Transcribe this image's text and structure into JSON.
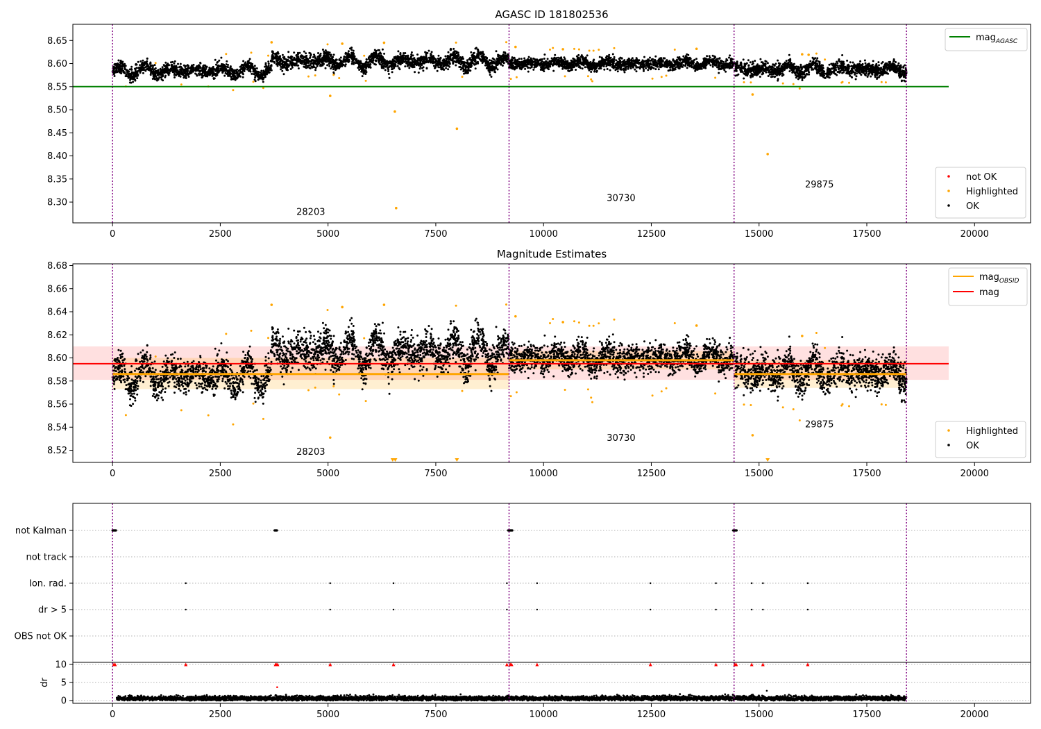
{
  "chart_data": [
    {
      "type": "scatter",
      "title": "AGASC ID 181802536",
      "xlim": [
        -920,
        21300
      ],
      "ylim": [
        8.255,
        8.685
      ],
      "xticks": [
        0,
        2500,
        5000,
        7500,
        10000,
        12500,
        15000,
        17500,
        20000
      ],
      "xtick_labels": [
        "0",
        "2500",
        "5000",
        "7500",
        "10000",
        "12500",
        "15000",
        "17500",
        "20000"
      ],
      "yticks": [
        8.3,
        8.35,
        8.4,
        8.45,
        8.5,
        8.55,
        8.6,
        8.65
      ],
      "ytick_labels": [
        "8.30",
        "8.35",
        "8.40",
        "8.45",
        "8.50",
        "8.55",
        "8.60",
        "8.65"
      ],
      "obs_boundaries": [
        0,
        9200,
        14420,
        18420
      ],
      "obs_labels": [
        {
          "text": "28203",
          "x": 4600,
          "y": 8.272
        },
        {
          "text": "30730",
          "x": 11800,
          "y": 8.302
        },
        {
          "text": "29875",
          "x": 16400,
          "y": 8.332
        }
      ],
      "lines": [
        {
          "name": "mag_AGASC",
          "color": "#008000",
          "y": 8.55,
          "x_from": -920,
          "x_to": 19400
        }
      ],
      "line_legend": {
        "placement": "top-right",
        "entries": [
          {
            "label": "mag",
            "sub": "AGASC",
            "color": "#008000"
          }
        ]
      },
      "point_legend": {
        "placement": "bottom-right",
        "entries": [
          {
            "label": "not OK",
            "color": "#ff0000"
          },
          {
            "label": "Highlighted",
            "color": "#ffa500"
          },
          {
            "label": "OK",
            "color": "#000000"
          }
        ]
      },
      "segments": [
        {
          "x": [
            0,
            3700
          ],
          "mean": 8.585,
          "amp": 0.012,
          "noise": 0.007
        },
        {
          "x": [
            3700,
            9200
          ],
          "mean": 8.605,
          "amp": 0.014,
          "noise": 0.008
        },
        {
          "x": [
            9200,
            14420
          ],
          "mean": 8.6,
          "amp": 0.006,
          "noise": 0.006
        },
        {
          "x": [
            14420,
            18420
          ],
          "mean": 8.588,
          "amp": 0.01,
          "noise": 0.007
        }
      ],
      "outliers": [
        {
          "x": 6550,
          "y": 8.496
        },
        {
          "x": 6580,
          "y": 8.287
        },
        {
          "x": 7990,
          "y": 8.459
        },
        {
          "x": 5050,
          "y": 8.53
        },
        {
          "x": 14850,
          "y": 8.533
        },
        {
          "x": 15200,
          "y": 8.404
        },
        {
          "x": 3690,
          "y": 8.646
        },
        {
          "x": 5330,
          "y": 8.643
        },
        {
          "x": 6300,
          "y": 8.645
        },
        {
          "x": 9350,
          "y": 8.636
        },
        {
          "x": 10450,
          "y": 8.631
        },
        {
          "x": 13550,
          "y": 8.632
        },
        {
          "x": 16000,
          "y": 8.62
        },
        {
          "x": 16150,
          "y": 8.619
        }
      ]
    },
    {
      "type": "scatter",
      "title": "Magnitude Estimates",
      "xlim": [
        -920,
        21300
      ],
      "ylim": [
        8.5095,
        8.6815
      ],
      "xticks": [
        0,
        2500,
        5000,
        7500,
        10000,
        12500,
        15000,
        17500,
        20000
      ],
      "xtick_labels": [
        "0",
        "2500",
        "5000",
        "7500",
        "10000",
        "12500",
        "15000",
        "17500",
        "20000"
      ],
      "yticks": [
        8.52,
        8.54,
        8.56,
        8.58,
        8.6,
        8.62,
        8.64,
        8.66,
        8.68
      ],
      "ytick_labels": [
        "8.52",
        "8.54",
        "8.56",
        "8.58",
        "8.60",
        "8.62",
        "8.64",
        "8.66",
        "8.68"
      ],
      "obs_boundaries": [
        0,
        9200,
        14420,
        18420
      ],
      "obs_labels": [
        {
          "text": "28203",
          "x": 4600,
          "y": 8.516
        },
        {
          "text": "30730",
          "x": 11800,
          "y": 8.528
        },
        {
          "text": "29875",
          "x": 16400,
          "y": 8.54
        }
      ],
      "mag": {
        "value": 8.595,
        "band": [
          8.581,
          8.61
        ],
        "x_from": -920,
        "x_to": 19400,
        "color": "#ff0000"
      },
      "mag_obsid": [
        {
          "x": [
            0,
            9200
          ],
          "value": 8.586,
          "band": [
            8.573,
            8.6
          ]
        },
        {
          "x": [
            9200,
            14420
          ],
          "value": 8.598,
          "band": [
            8.59,
            8.606
          ]
        },
        {
          "x": [
            14420,
            18420
          ],
          "value": 8.586,
          "band": [
            8.574,
            8.598
          ]
        }
      ],
      "line_legend": {
        "placement": "top-right",
        "entries": [
          {
            "label": "mag",
            "sub": "OBSID",
            "color": "#ffa500"
          },
          {
            "label": "mag",
            "sub": "",
            "color": "#ff0000"
          }
        ]
      },
      "point_legend": {
        "placement": "bottom-right",
        "entries": [
          {
            "label": "Highlighted",
            "color": "#ffa500"
          },
          {
            "label": "OK",
            "color": "#000000"
          }
        ]
      },
      "segments": [
        {
          "x": [
            0,
            3700
          ],
          "mean": 8.585,
          "amp": 0.012,
          "noise": 0.007
        },
        {
          "x": [
            3700,
            9200
          ],
          "mean": 8.605,
          "amp": 0.014,
          "noise": 0.008
        },
        {
          "x": [
            9200,
            14420
          ],
          "mean": 8.6,
          "amp": 0.006,
          "noise": 0.006
        },
        {
          "x": [
            14420,
            18420
          ],
          "mean": 8.588,
          "amp": 0.01,
          "noise": 0.007
        }
      ],
      "clipped_low_markers": [
        6500,
        6560,
        7990,
        15200
      ],
      "outliers": [
        {
          "x": 5050,
          "y": 8.531
        },
        {
          "x": 14850,
          "y": 8.533
        },
        {
          "x": 3690,
          "y": 8.646
        },
        {
          "x": 5330,
          "y": 8.644
        },
        {
          "x": 6300,
          "y": 8.646
        },
        {
          "x": 9350,
          "y": 8.636
        },
        {
          "x": 10450,
          "y": 8.631
        },
        {
          "x": 13550,
          "y": 8.628
        },
        {
          "x": 16000,
          "y": 8.619
        }
      ]
    },
    {
      "type": "scatter",
      "title": "",
      "xlim": [
        -920,
        21300
      ],
      "xticks": [
        0,
        2500,
        5000,
        7500,
        10000,
        12500,
        15000,
        17500,
        20000
      ],
      "xtick_labels": [
        "0",
        "2500",
        "5000",
        "7500",
        "10000",
        "12500",
        "15000",
        "17500",
        "20000"
      ],
      "obs_boundaries": [
        0,
        9200,
        14420,
        18420
      ],
      "flag_rows": [
        "not Kalman",
        "not track",
        "Ion. rad.",
        "dr > 5",
        "OBS not OK"
      ],
      "flags": {
        "not Kalman": [
          [
            0,
            80
          ],
          [
            3760,
            3820
          ],
          [
            9180,
            9280
          ],
          [
            14400,
            14480
          ]
        ],
        "not track": [],
        "Ion. rad.": [
          1700,
          5050,
          6520,
          9150,
          9850,
          12480,
          14000,
          14830,
          15090,
          16130
        ],
        "dr > 5": [
          1700,
          5050,
          6520,
          9150,
          9850,
          12480,
          14000,
          14830,
          15090,
          16130
        ],
        "OBS not OK": []
      },
      "dr_axis": {
        "ylabel": "dr",
        "ylim": [
          -0.3,
          10.3
        ],
        "yticks": [
          0,
          5,
          10
        ],
        "ytick_labels": [
          "0",
          "5",
          "10"
        ],
        "clipped_high": [
          30,
          60,
          1700,
          3780,
          3800,
          3830,
          5050,
          6520,
          9150,
          9230,
          9260,
          9850,
          12480,
          14000,
          14440,
          14470,
          14830,
          15090,
          16130
        ],
        "extra_points": [
          {
            "x": 3820,
            "y": 3.7
          },
          {
            "x": 15180,
            "y": 2.7
          }
        ]
      }
    }
  ]
}
